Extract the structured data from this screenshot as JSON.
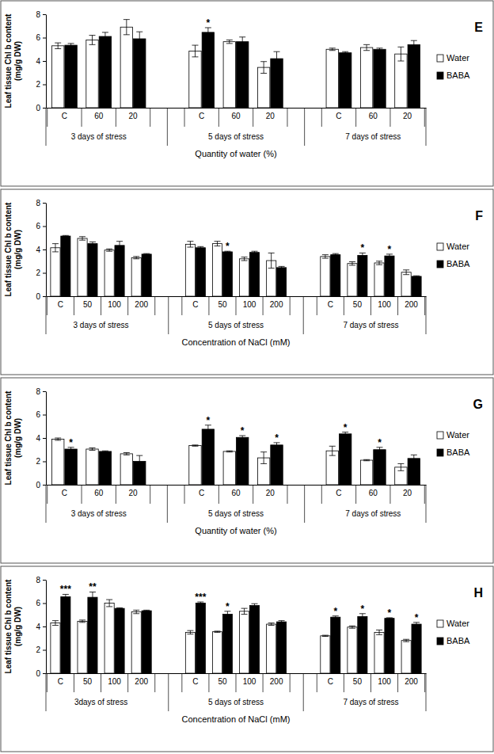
{
  "chart_data": [
    {
      "type": "bar",
      "title": "E",
      "y_label": [
        "Leaf tissue Chl b content",
        "(mg/g DW)"
      ],
      "x_label": "Quantity of water (%)",
      "groups": [
        "3 days of stress",
        "5 days of stress",
        "7 days of stress"
      ],
      "categories": [
        "C",
        "60",
        "20",
        "C",
        "60",
        "20",
        "C",
        "60",
        "20"
      ],
      "ylim": [
        0,
        8
      ],
      "yticks": [
        0,
        2,
        4,
        6,
        8
      ],
      "grid": false,
      "legend": "right",
      "series": [
        {
          "name": "Water",
          "color": "#ffffff",
          "values": [
            5.3,
            5.8,
            6.9,
            4.85,
            5.65,
            3.45,
            5.0,
            5.15,
            4.6
          ],
          "errors": [
            0.25,
            0.4,
            0.65,
            0.5,
            0.15,
            0.5,
            0.1,
            0.25,
            0.6
          ]
        },
        {
          "name": "BABA",
          "color": "#000000",
          "values": [
            5.35,
            6.1,
            5.9,
            6.45,
            5.65,
            4.2,
            4.7,
            5.0,
            5.4
          ],
          "errors": [
            0.15,
            0.35,
            0.6,
            0.4,
            0.4,
            0.6,
            0.1,
            0.1,
            0.35
          ],
          "significance": [
            null,
            null,
            null,
            "*",
            null,
            null,
            null,
            null,
            null
          ]
        }
      ]
    },
    {
      "type": "bar",
      "title": "F",
      "y_label": [
        "Leaf tissue Chl b content",
        "(mg/g DW)"
      ],
      "x_label": "Concentration of NaCl (mM)",
      "groups": [
        "3 days of stress",
        "5 days of stress",
        "7 days of stress"
      ],
      "categories": [
        "C",
        "50",
        "100",
        "200",
        "C",
        "50",
        "100",
        "200",
        "C",
        "50",
        "100",
        "200"
      ],
      "ylim": [
        0,
        8
      ],
      "yticks": [
        0,
        2,
        4,
        6,
        8
      ],
      "grid": false,
      "legend": "right",
      "series": [
        {
          "name": "Water",
          "color": "#ffffff",
          "values": [
            4.15,
            4.95,
            3.95,
            3.3,
            4.45,
            4.5,
            3.2,
            3.05,
            3.4,
            2.8,
            2.85,
            2.05
          ],
          "errors": [
            0.35,
            0.15,
            0.1,
            0.1,
            0.25,
            0.2,
            0.15,
            0.65,
            0.15,
            0.15,
            0.15,
            0.2
          ]
        },
        {
          "name": "BABA",
          "color": "#000000",
          "values": [
            5.15,
            4.5,
            4.35,
            3.6,
            4.15,
            3.8,
            3.75,
            2.45,
            3.55,
            3.5,
            3.45,
            1.7
          ],
          "errors": [
            0.05,
            0.15,
            0.35,
            0.05,
            0.1,
            0.05,
            0.1,
            0.1,
            0.1,
            0.2,
            0.15,
            0.05
          ],
          "significance": [
            null,
            null,
            null,
            null,
            null,
            "*",
            null,
            null,
            null,
            "*",
            "*",
            null
          ]
        }
      ]
    },
    {
      "type": "bar",
      "title": "G",
      "y_label": [
        "Leaf tissue Chl b content",
        "(mg/g DW)"
      ],
      "x_label": "Quantity of water (%)",
      "groups": [
        "3 days of stress",
        "5 days of stress",
        "7 days of stress"
      ],
      "categories": [
        "C",
        "60",
        "20",
        "C",
        "60",
        "20",
        "C",
        "60",
        "20"
      ],
      "ylim": [
        0,
        8
      ],
      "yticks": [
        0,
        2,
        4,
        6,
        8
      ],
      "grid": false,
      "legend": "right",
      "series": [
        {
          "name": "Water",
          "color": "#ffffff",
          "values": [
            3.9,
            3.05,
            2.65,
            3.35,
            2.85,
            2.3,
            2.9,
            2.1,
            1.5
          ],
          "errors": [
            0.1,
            0.1,
            0.1,
            0.05,
            0.05,
            0.5,
            0.4,
            0.05,
            0.3
          ]
        },
        {
          "name": "BABA",
          "color": "#000000",
          "values": [
            3.05,
            2.85,
            2.0,
            4.75,
            4.05,
            3.4,
            4.35,
            3.0,
            2.25
          ],
          "errors": [
            0.15,
            0.05,
            0.5,
            0.35,
            0.15,
            0.2,
            0.15,
            0.2,
            0.3
          ],
          "significance": [
            "*",
            null,
            null,
            "*",
            "*",
            "*",
            "*",
            "*",
            null
          ]
        }
      ]
    },
    {
      "type": "bar",
      "title": "H",
      "y_label": [
        "Leaf tissue Chl b content",
        "(mg/g DW)"
      ],
      "x_label": "Concentration of NaCl (mM)",
      "groups": [
        "3days of stress",
        "5 days of stress",
        "7 days of stress"
      ],
      "categories": [
        "C",
        "50",
        "100",
        "200",
        "C",
        "50",
        "100",
        "200",
        "C",
        "50",
        "100",
        "200"
      ],
      "ylim": [
        0,
        8
      ],
      "yticks": [
        0,
        2,
        4,
        6,
        8
      ],
      "grid": false,
      "legend": "right",
      "series": [
        {
          "name": "Water",
          "color": "#ffffff",
          "values": [
            4.3,
            4.45,
            6.0,
            5.25,
            3.5,
            3.55,
            5.3,
            4.2,
            3.2,
            3.95,
            3.5,
            2.8
          ],
          "errors": [
            0.2,
            0.1,
            0.3,
            0.15,
            0.15,
            0.05,
            0.25,
            0.1,
            0.05,
            0.1,
            0.2,
            0.1
          ]
        },
        {
          "name": "BABA",
          "color": "#000000",
          "values": [
            6.55,
            6.5,
            5.55,
            5.35,
            6.0,
            5.05,
            5.8,
            4.4,
            4.8,
            4.85,
            4.7,
            4.2
          ],
          "errors": [
            0.2,
            0.45,
            0.05,
            0.05,
            0.1,
            0.25,
            0.15,
            0.1,
            0.1,
            0.25,
            0.05,
            0.15
          ],
          "significance": [
            "***",
            "**",
            null,
            null,
            "***",
            "*",
            null,
            null,
            "*",
            "*",
            "*",
            "*"
          ]
        }
      ]
    }
  ]
}
